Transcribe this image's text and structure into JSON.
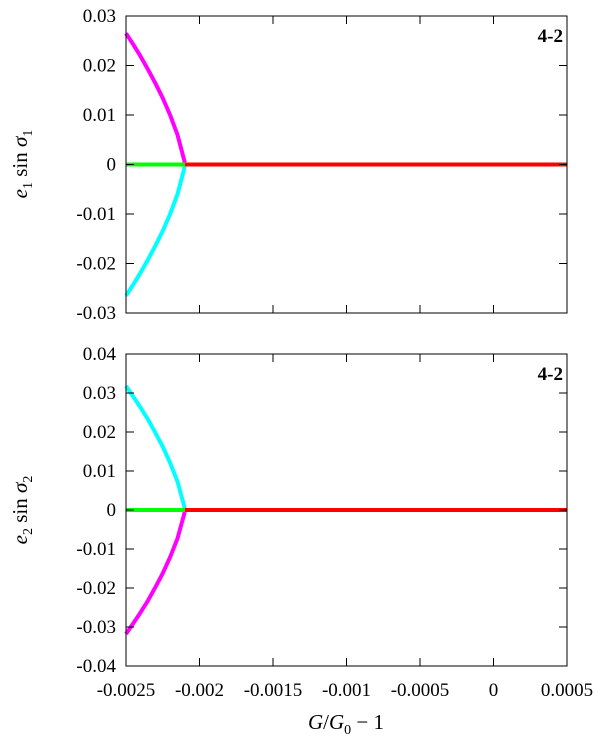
{
  "chart_data": [
    {
      "type": "line",
      "panel_label": "4-2",
      "ylabel": {
        "base": "e",
        "sub": "1",
        "mid": " sin ",
        "greek": "σ",
        "gsub": "1"
      },
      "xlim": [
        -0.0025,
        0.0005
      ],
      "ylim": [
        -0.03,
        0.03
      ],
      "x_ticks": [
        -0.0025,
        -0.002,
        -0.0015,
        -0.001,
        -0.0005,
        0,
        0.0005
      ],
      "y_ticks": [
        "0.03",
        "0.02",
        "0.01",
        "0",
        "-0.01",
        "-0.02",
        "-0.03"
      ],
      "y_tick_values": [
        0.03,
        0.02,
        0.01,
        0,
        -0.01,
        -0.02,
        -0.03
      ],
      "grid": false,
      "series": [
        {
          "color": "#ff00ff",
          "x": [
            -0.0025,
            -0.00245,
            -0.0024,
            -0.00235,
            -0.0023,
            -0.00225,
            -0.0022,
            -0.00215,
            -0.0021
          ],
          "y": [
            0.0265,
            0.0242,
            0.0218,
            0.0192,
            0.0164,
            0.0134,
            0.01,
            0.006,
            0.0004
          ]
        },
        {
          "color": "#00ffff",
          "x": [
            -0.0025,
            -0.00245,
            -0.0024,
            -0.00235,
            -0.0023,
            -0.00225,
            -0.0022,
            -0.00215,
            -0.0021
          ],
          "y": [
            -0.0265,
            -0.0242,
            -0.0218,
            -0.0192,
            -0.0164,
            -0.0134,
            -0.01,
            -0.006,
            -0.0004
          ]
        },
        {
          "color": "#00ff00",
          "x": [
            -0.0025,
            -0.0021
          ],
          "y": [
            0,
            0
          ]
        },
        {
          "color": "#ff0000",
          "x": [
            -0.0021,
            0.0005
          ],
          "y": [
            0,
            0
          ]
        }
      ]
    },
    {
      "type": "line",
      "panel_label": "4-2",
      "ylabel": {
        "base": "e",
        "sub": "2",
        "mid": " sin ",
        "greek": "σ",
        "gsub": "2"
      },
      "xlim": [
        -0.0025,
        0.0005
      ],
      "ylim": [
        -0.04,
        0.04
      ],
      "x_ticks": [
        -0.0025,
        -0.002,
        -0.0015,
        -0.001,
        -0.0005,
        0,
        0.0005
      ],
      "x_tick_labels": [
        "-0.0025",
        "-0.002",
        "-0.0015",
        "-0.001",
        "-0.0005",
        "0",
        "0.0005"
      ],
      "xlabel": {
        "g": "G",
        "slash": "/",
        "g0": "G",
        "sub": "0",
        "rest": " − 1"
      },
      "y_ticks": [
        "0.04",
        "0.03",
        "0.02",
        "0.01",
        "0",
        "-0.01",
        "-0.02",
        "-0.03",
        "-0.04"
      ],
      "y_tick_values": [
        0.04,
        0.03,
        0.02,
        0.01,
        0,
        -0.01,
        -0.02,
        -0.03,
        -0.04
      ],
      "grid": false,
      "series": [
        {
          "color": "#00ffff",
          "x": [
            -0.0025,
            -0.00245,
            -0.0024,
            -0.00235,
            -0.0023,
            -0.00225,
            -0.0022,
            -0.00215,
            -0.0021
          ],
          "y": [
            0.0318,
            0.029,
            0.0262,
            0.0232,
            0.0198,
            0.0162,
            0.0121,
            0.0073,
            0.0005
          ]
        },
        {
          "color": "#ff00ff",
          "x": [
            -0.0025,
            -0.00245,
            -0.0024,
            -0.00235,
            -0.0023,
            -0.00225,
            -0.0022,
            -0.00215,
            -0.0021
          ],
          "y": [
            -0.0318,
            -0.029,
            -0.0262,
            -0.0232,
            -0.0198,
            -0.0162,
            -0.0121,
            -0.0073,
            -0.0005
          ]
        },
        {
          "color": "#00ff00",
          "x": [
            -0.0025,
            -0.0021
          ],
          "y": [
            0,
            0
          ]
        },
        {
          "color": "#ff0000",
          "x": [
            -0.0021,
            0.0005
          ],
          "y": [
            0,
            0
          ]
        }
      ]
    }
  ]
}
